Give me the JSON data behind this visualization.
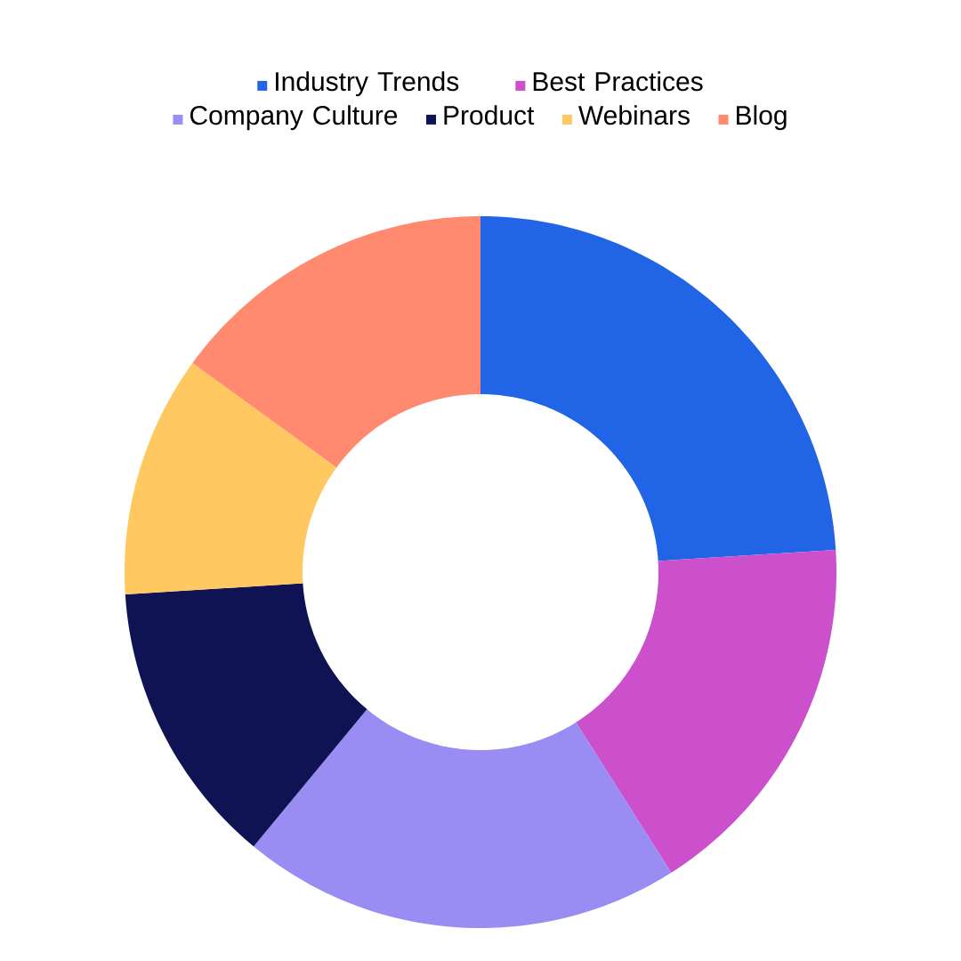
{
  "chart_data": {
    "type": "donut",
    "categories": [
      "Industry Trends",
      "Best Practices",
      "Company Culture",
      "Product",
      "Webinars",
      "Blog"
    ],
    "values": [
      24,
      17,
      20,
      13,
      11,
      15
    ],
    "colors": [
      "#2264e6",
      "#cc4fcc",
      "#998cf3",
      "#0f1354",
      "#ffc861",
      "#ff8a70"
    ],
    "legend": "top"
  }
}
